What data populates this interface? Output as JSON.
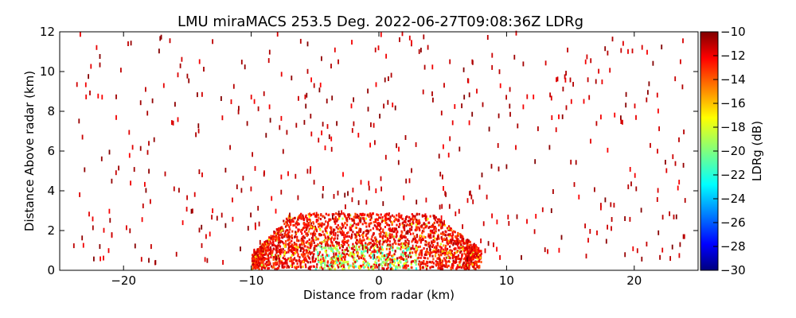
{
  "chart_data": {
    "type": "heatmap",
    "title": "LMU miraMACS 253.5 Deg. 2022-06-27T09:08:36Z  LDRg",
    "xlabel": "Distance from radar (km)",
    "ylabel": "Distance Above radar  (km)",
    "xlim": [
      -25,
      25
    ],
    "ylim": [
      0,
      12
    ],
    "x_ticks": [
      -20,
      -10,
      0,
      10,
      20
    ],
    "y_ticks": [
      0,
      2,
      4,
      6,
      8,
      10,
      12
    ],
    "colorbar": {
      "label": "LDRg (dB)",
      "range": [
        -30,
        -10
      ],
      "ticks": [
        -10,
        -12,
        -14,
        -16,
        -18,
        -20,
        -22,
        -24,
        -26,
        -28,
        -30
      ],
      "colormap": "jet"
    },
    "scan_elevation_deg": 253.5,
    "grid": false,
    "features": {
      "dense_echo_region": {
        "x_range_km": [
          -10,
          8
        ],
        "top_height_km": 2.8,
        "typical_ldr_db": -11,
        "low_ldr_core_db": -17
      },
      "sparse_speckle_height_km": [
        0,
        12
      ]
    }
  }
}
